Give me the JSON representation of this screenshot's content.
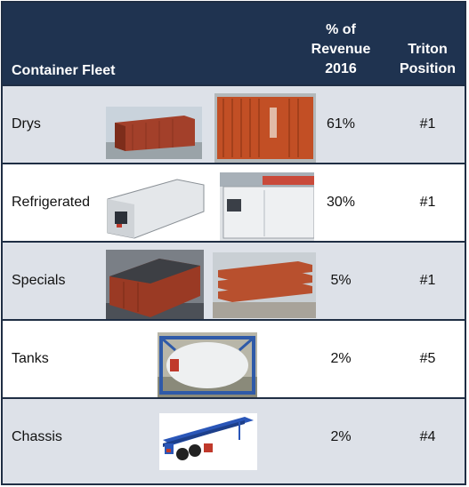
{
  "header": {
    "fleet_label": "Container Fleet",
    "revenue_label_line1": "% of",
    "revenue_label_line2": "Revenue",
    "revenue_label_line3": "2016",
    "position_label_line1": "Triton",
    "position_label_line2": "Position"
  },
  "rows": [
    {
      "name": "Drys",
      "revenue": "61%",
      "position": "#1"
    },
    {
      "name": "Refrigerated",
      "revenue": "30%",
      "position": "#1"
    },
    {
      "name": "Specials",
      "revenue": "5%",
      "position": "#1"
    },
    {
      "name": "Tanks",
      "revenue": "2%",
      "position": "#5"
    },
    {
      "name": "Chassis",
      "revenue": "2%",
      "position": "#4"
    }
  ],
  "colors": {
    "header_bg": "#1f3350",
    "alt_row_bg": "#dde1e8",
    "border": "#1f2e44",
    "container_rust": "#b24a2a",
    "reefer_white": "#e9ecef",
    "tank_frame_blue": "#2f5aa8",
    "chassis_blue": "#2a56b8"
  },
  "images": {
    "drys_1": "dry-container-photo",
    "drys_2": "triton-dry-container-photo",
    "reefer_1": "reefer-container-photo",
    "reefer_2": "triton-reefer-container-photo",
    "specials_1": "open-top-container-photo",
    "specials_2": "flat-rack-containers-photo",
    "tank": "tank-container-photo",
    "chassis": "chassis-trailer-photo"
  }
}
